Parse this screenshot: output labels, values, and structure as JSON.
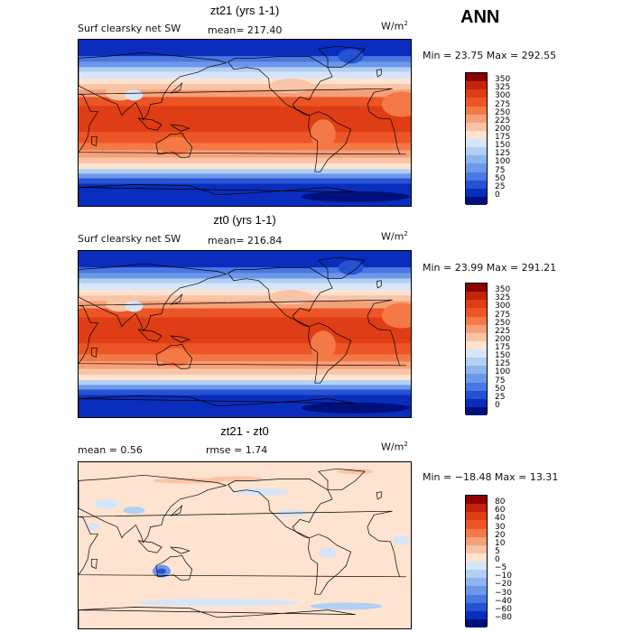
{
  "season": "ANN",
  "panels": [
    {
      "title": "zt21 (yrs 1-1)",
      "field": "Surf clearsky net SW",
      "mean": "mean= 217.40",
      "units": "W/m",
      "units_exp": "2",
      "minmax": "Min =  23.75 Max = 292.55",
      "levels": [
        "350",
        "325",
        "300",
        "275",
        "250",
        "225",
        "200",
        "175",
        "150",
        "125",
        "100",
        "75",
        "50",
        "25",
        "0"
      ],
      "colors": [
        "#8b0000",
        "#c3240a",
        "#de3d15",
        "#ec5526",
        "#f37946",
        "#f6a07a",
        "#f9c4a6",
        "#fde3d0",
        "#d6e6f8",
        "#b2cff4",
        "#8fb4ef",
        "#6d98ea",
        "#4a78e2",
        "#2452d2",
        "#0a2dbd",
        "#00107a"
      ]
    },
    {
      "title": "zt0 (yrs 1-1)",
      "field": "Surf clearsky net SW",
      "mean": "mean= 216.84",
      "units": "W/m",
      "units_exp": "2",
      "minmax": "Min =  23.99 Max = 291.21",
      "levels": [
        "350",
        "325",
        "300",
        "275",
        "250",
        "225",
        "200",
        "175",
        "150",
        "125",
        "100",
        "75",
        "50",
        "25",
        "0"
      ],
      "colors": [
        "#8b0000",
        "#c3240a",
        "#de3d15",
        "#ec5526",
        "#f37946",
        "#f6a07a",
        "#f9c4a6",
        "#fde3d0",
        "#d6e6f8",
        "#b2cff4",
        "#8fb4ef",
        "#6d98ea",
        "#4a78e2",
        "#2452d2",
        "#0a2dbd",
        "#00107a"
      ]
    },
    {
      "title": "zt21 - zt0",
      "field": "mean =    0.56",
      "mean": "rmse =    1.74",
      "units": "W/m",
      "units_exp": "2",
      "minmax": "Min = −18.48 Max =   13.31",
      "levels": [
        "80",
        "60",
        "40",
        "30",
        "20",
        "10",
        "5",
        "0",
        "−5",
        "−10",
        "−20",
        "−30",
        "−40",
        "−60",
        "−80"
      ],
      "colors": [
        "#8b0000",
        "#c3240a",
        "#de3d15",
        "#ec5526",
        "#f37946",
        "#f6a07a",
        "#f9c4a6",
        "#fde3d0",
        "#d6e6f8",
        "#b2cff4",
        "#8fb4ef",
        "#6d98ea",
        "#4a78e2",
        "#2452d2",
        "#0a2dbd",
        "#00107a"
      ]
    }
  ]
}
